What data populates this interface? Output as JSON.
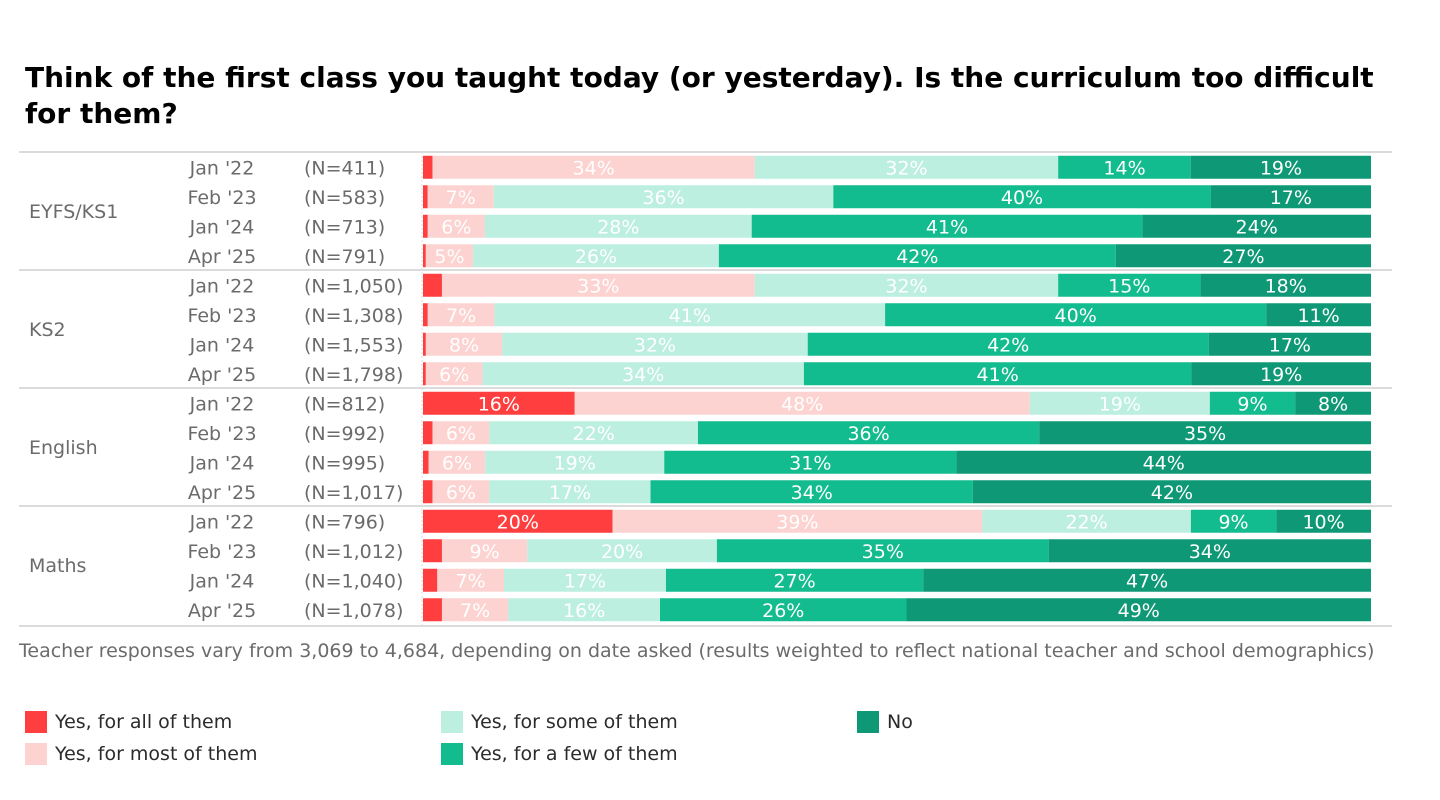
{
  "chart_data": {
    "type": "bar",
    "orientation": "horizontal",
    "stacked": true,
    "title": "Think of the first class you taught today (or yesterday). Is the curriculum too difficult for them?",
    "note": "Teacher responses vary from 3,069 to 4,684, depending on date asked (results weighted to reflect national teacher and school demographics)",
    "xlim": [
      0,
      100
    ],
    "legend_position": "bottom",
    "series": [
      {
        "name": "Yes, for all of them",
        "color": "#ff3f3f",
        "label_color": "#ffffff"
      },
      {
        "name": "Yes, for most of them",
        "color": "#fcd3d1",
        "label_color": "#ffffff"
      },
      {
        "name": "Yes, for some of them",
        "color": "#bcefdf",
        "label_color": "#ffffff"
      },
      {
        "name": "Yes, for a few of them",
        "color": "#13bc8e",
        "label_color": "#ffffff"
      },
      {
        "name": "No",
        "color": "#0f9875",
        "label_color": "#ffffff"
      }
    ],
    "groups": [
      {
        "name": "EYFS/KS1",
        "rows": [
          {
            "period": "Jan '22",
            "n": "(N=411)",
            "values": [
              1,
              34,
              32,
              14,
              19
            ],
            "labels": [
              "",
              "34%",
              "32%",
              "14%",
              "19%"
            ]
          },
          {
            "period": "Feb '23",
            "n": "(N=583)",
            "values": [
              0.5,
              7,
              36,
              40,
              17
            ],
            "labels": [
              "",
              "7%",
              "36%",
              "40%",
              "17%"
            ]
          },
          {
            "period": "Jan '24",
            "n": "(N=713)",
            "values": [
              0.5,
              6,
              28,
              41,
              24
            ],
            "labels": [
              "",
              "6%",
              "28%",
              "41%",
              "24%"
            ]
          },
          {
            "period": "Apr '25",
            "n": "(N=791)",
            "values": [
              0.3,
              5,
              26,
              42,
              27
            ],
            "labels": [
              "",
              "5%",
              "26%",
              "42%",
              "27%"
            ]
          }
        ]
      },
      {
        "name": "KS2",
        "rows": [
          {
            "period": "Jan '22",
            "n": "(N=1,050)",
            "values": [
              2,
              33,
              32,
              15,
              18
            ],
            "labels": [
              "",
              "33%",
              "32%",
              "15%",
              "18%"
            ]
          },
          {
            "period": "Feb '23",
            "n": "(N=1,308)",
            "values": [
              0.5,
              7,
              41,
              40,
              11
            ],
            "labels": [
              "",
              "7%",
              "41%",
              "40%",
              "11%"
            ]
          },
          {
            "period": "Jan '24",
            "n": "(N=1,553)",
            "values": [
              0.3,
              8,
              32,
              42,
              17
            ],
            "labels": [
              "",
              "8%",
              "32%",
              "42%",
              "17%"
            ]
          },
          {
            "period": "Apr '25",
            "n": "(N=1,798)",
            "values": [
              0.3,
              6,
              34,
              41,
              19
            ],
            "labels": [
              "",
              "6%",
              "34%",
              "41%",
              "19%"
            ]
          }
        ]
      },
      {
        "name": "English",
        "rows": [
          {
            "period": "Jan '22",
            "n": "(N=812)",
            "values": [
              16,
              48,
              19,
              9,
              8
            ],
            "labels": [
              "16%",
              "48%",
              "19%",
              "9%",
              "8%"
            ]
          },
          {
            "period": "Feb '23",
            "n": "(N=992)",
            "values": [
              1,
              6,
              22,
              36,
              35
            ],
            "labels": [
              "",
              "6%",
              "22%",
              "36%",
              "35%"
            ]
          },
          {
            "period": "Jan '24",
            "n": "(N=995)",
            "values": [
              0.6,
              6,
              19,
              31,
              44
            ],
            "labels": [
              "",
              "6%",
              "19%",
              "31%",
              "44%"
            ]
          },
          {
            "period": "Apr '25",
            "n": "(N=1,017)",
            "values": [
              1,
              6,
              17,
              34,
              42
            ],
            "labels": [
              "",
              "6%",
              "17%",
              "34%",
              "42%"
            ]
          }
        ]
      },
      {
        "name": "Maths",
        "rows": [
          {
            "period": "Jan '22",
            "n": "(N=796)",
            "values": [
              20,
              39,
              22,
              9,
              10
            ],
            "labels": [
              "20%",
              "39%",
              "22%",
              "9%",
              "10%"
            ]
          },
          {
            "period": "Feb '23",
            "n": "(N=1,012)",
            "values": [
              2,
              9,
              20,
              35,
              34
            ],
            "labels": [
              "",
              "9%",
              "20%",
              "35%",
              "34%"
            ]
          },
          {
            "period": "Jan '24",
            "n": "(N=1,040)",
            "values": [
              1.5,
              7,
              17,
              27,
              47
            ],
            "labels": [
              "",
              "7%",
              "17%",
              "27%",
              "47%"
            ]
          },
          {
            "period": "Apr '25",
            "n": "(N=1,078)",
            "values": [
              2,
              7,
              16,
              26,
              49
            ],
            "labels": [
              "",
              "7%",
              "16%",
              "26%",
              "49%"
            ]
          }
        ]
      }
    ]
  }
}
